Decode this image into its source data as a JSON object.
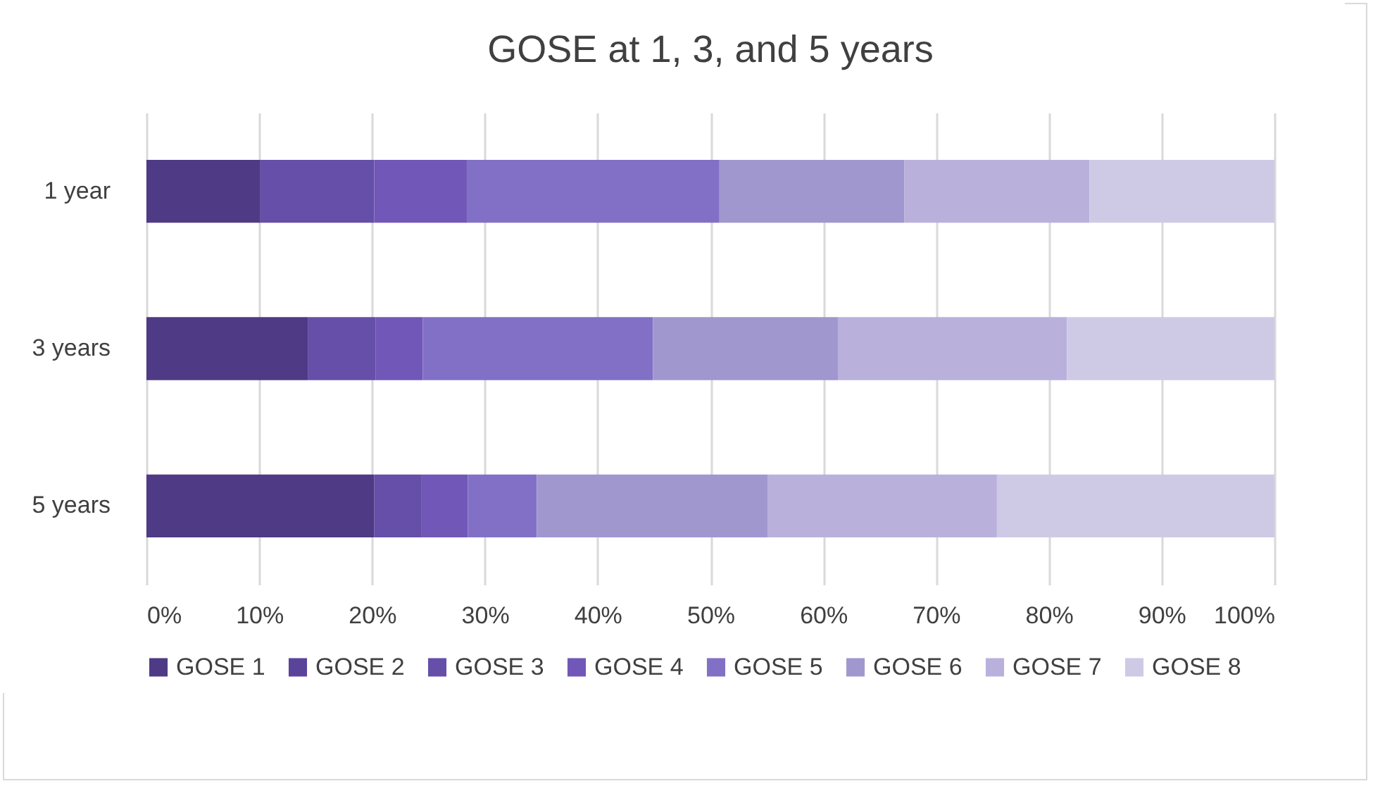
{
  "chart_data": {
    "type": "bar",
    "title": "GOSE at 1, 3, and 5 years",
    "orientation": "horizontal",
    "stacked": true,
    "categories": [
      "1 year",
      "3 years",
      "5 years"
    ],
    "series": [
      {
        "name": "GOSE 1",
        "color": "#4e3a85",
        "values": [
          10.1,
          14.3,
          20.2
        ]
      },
      {
        "name": "GOSE 2",
        "color": "#5a449a",
        "values": [
          0,
          0,
          0
        ]
      },
      {
        "name": "GOSE 3",
        "color": "#654fa8",
        "values": [
          10.1,
          6.0,
          4.2
        ]
      },
      {
        "name": "GOSE 4",
        "color": "#7157b8",
        "values": [
          8.2,
          4.2,
          4.1
        ]
      },
      {
        "name": "GOSE 5",
        "color": "#8270c6",
        "values": [
          22.4,
          20.4,
          6.1
        ]
      },
      {
        "name": "GOSE 6",
        "color": "#a197cf",
        "values": [
          16.4,
          16.4,
          20.5
        ]
      },
      {
        "name": "GOSE 7",
        "color": "#b9b1dc",
        "values": [
          16.4,
          20.3,
          20.3
        ]
      },
      {
        "name": "GOSE 8",
        "color": "#cecae6",
        "values": [
          16.4,
          18.4,
          24.6
        ]
      }
    ],
    "xlim": [
      0,
      100
    ],
    "xticks": [
      {
        "value": 0,
        "label": "0%"
      },
      {
        "value": 10,
        "label": "10%"
      },
      {
        "value": 20,
        "label": "20%"
      },
      {
        "value": 30,
        "label": "30%"
      },
      {
        "value": 40,
        "label": "40%"
      },
      {
        "value": 50,
        "label": "50%"
      },
      {
        "value": 60,
        "label": "60%"
      },
      {
        "value": 70,
        "label": "70%"
      },
      {
        "value": 80,
        "label": "80%"
      },
      {
        "value": 90,
        "label": "90%"
      },
      {
        "value": 100,
        "label": "100%"
      }
    ],
    "grid": "x",
    "legend": "bottom"
  }
}
